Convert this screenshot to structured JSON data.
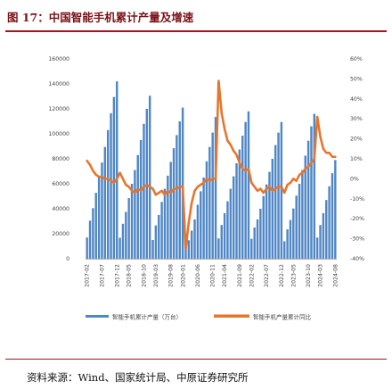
{
  "figure": {
    "title": "图 17：中国智能手机累计产量及增速",
    "source": "资料来源：Wind、国家统计局、中原证券研究所"
  },
  "colors": {
    "title": "#7a1216",
    "rule": "#9a1b1f",
    "bars": "#4f86c6",
    "line": "#e6762e"
  },
  "chart_data": {
    "type": "bar",
    "title": "",
    "xlabel": "",
    "ylabel_left": "",
    "ylabel_right": "",
    "ylim_left": [
      0,
      160000
    ],
    "ylim_right": [
      -0.4,
      0.6
    ],
    "yticks_left": [
      "160000",
      "140000",
      "120000",
      "100000",
      "80000",
      "60000",
      "40000",
      "20000",
      "0"
    ],
    "yticks_right": [
      "60%",
      "50%",
      "40%",
      "30%",
      "20%",
      "10%",
      "0%",
      "-10%",
      "-20%",
      "-30%",
      "-40%"
    ],
    "legend_position": "bottom",
    "x": [
      "2017-02",
      "2017-03",
      "2017-04",
      "2017-05",
      "2017-06",
      "2017-07",
      "2017-08",
      "2017-09",
      "2017-10",
      "2017-11",
      "2017-12",
      "2018-02",
      "2018-03",
      "2018-04",
      "2018-05",
      "2018-06",
      "2018-07",
      "2018-08",
      "2018-09",
      "2018-10",
      "2018-11",
      "2018-12",
      "2019-02",
      "2019-03",
      "2019-04",
      "2019-05",
      "2019-06",
      "2019-07",
      "2019-08",
      "2019-09",
      "2019-10",
      "2019-11",
      "2019-12",
      "2020-02",
      "2020-03",
      "2020-04",
      "2020-05",
      "2020-06",
      "2020-07",
      "2020-08",
      "2020-09",
      "2020-10",
      "2020-11",
      "2020-12",
      "2021-02",
      "2021-03",
      "2021-04",
      "2021-05",
      "2021-06",
      "2021-07",
      "2021-08",
      "2021-09",
      "2021-10",
      "2021-11",
      "2021-12",
      "2022-02",
      "2022-03",
      "2022-04",
      "2022-05",
      "2022-06",
      "2022-07",
      "2022-08",
      "2022-09",
      "2022-10",
      "2022-11",
      "2022-12",
      "2023-02",
      "2023-03",
      "2023-04",
      "2023-05",
      "2023-06",
      "2023-07",
      "2023-08",
      "2023-09",
      "2023-10",
      "2023-11",
      "2023-12",
      "2024-02",
      "2024-03",
      "2024-04",
      "2024-05",
      "2024-06",
      "2024-07",
      "2024-08"
    ],
    "xtick_labels": [
      "2017-02",
      "2017-07",
      "2017-12",
      "2018-05",
      "2018-10",
      "2019-03",
      "2019-08",
      "2020-01",
      "2020-06",
      "2020-11",
      "2021-04",
      "2021-09",
      "2022-02",
      "2022-07",
      "2022-12",
      "2023-05",
      "2023-10",
      "2024-03",
      "2024-08"
    ],
    "series": [
      {
        "name": "智能手机累计产量（万台）",
        "kind": "bar",
        "axis": "left",
        "values": [
          17000,
          30500,
          40500,
          52800,
          65000,
          77000,
          89500,
          103000,
          116500,
          129500,
          142000,
          16800,
          28000,
          37500,
          48500,
          60000,
          71000,
          83000,
          95000,
          108000,
          120000,
          130500,
          15000,
          26700,
          35000,
          45500,
          56000,
          66500,
          77500,
          88500,
          99000,
          110000,
          121000,
          9000,
          14800,
          22500,
          31500,
          43200,
          54000,
          65000,
          78000,
          89500,
          101000,
          113500,
          16300,
          27000,
          36500,
          46000,
          56000,
          66000,
          76500,
          87500,
          98500,
          109500,
          118000,
          16000,
          25000,
          31500,
          40000,
          50200,
          59500,
          69500,
          80000,
          91000,
          101000,
          109500,
          14000,
          23500,
          31000,
          40200,
          50500,
          60000,
          71000,
          82500,
          94500,
          106000,
          116000,
          17000,
          27000,
          36500,
          47000,
          58000,
          68500,
          79000
        ]
      },
      {
        "name": "智能手机产量累计同比",
        "kind": "line",
        "axis": "right",
        "values": [
          0.09,
          0.07,
          0.04,
          0.02,
          0.01,
          0.01,
          0.0,
          0.0,
          -0.01,
          -0.02,
          0.0,
          0.03,
          0.0,
          -0.03,
          -0.04,
          -0.06,
          -0.07,
          -0.05,
          -0.06,
          -0.04,
          -0.03,
          -0.04,
          -0.05,
          -0.08,
          -0.07,
          -0.06,
          -0.08,
          -0.06,
          -0.07,
          -0.05,
          -0.05,
          -0.04,
          -0.04,
          -0.35,
          -0.22,
          -0.12,
          -0.06,
          -0.04,
          -0.03,
          -0.02,
          0.0,
          -0.01,
          0.0,
          0.0,
          0.49,
          0.33,
          0.25,
          0.19,
          0.17,
          0.14,
          0.12,
          0.08,
          0.05,
          0.04,
          0.05,
          -0.02,
          -0.04,
          -0.06,
          -0.05,
          -0.07,
          -0.05,
          -0.04,
          -0.06,
          -0.05,
          -0.04,
          -0.04,
          -0.07,
          -0.03,
          -0.02,
          0.0,
          -0.01,
          0.02,
          0.03,
          0.05,
          0.06,
          0.08,
          0.1,
          0.31,
          0.21,
          0.15,
          0.13,
          0.13,
          0.11,
          0.11
        ]
      }
    ]
  }
}
